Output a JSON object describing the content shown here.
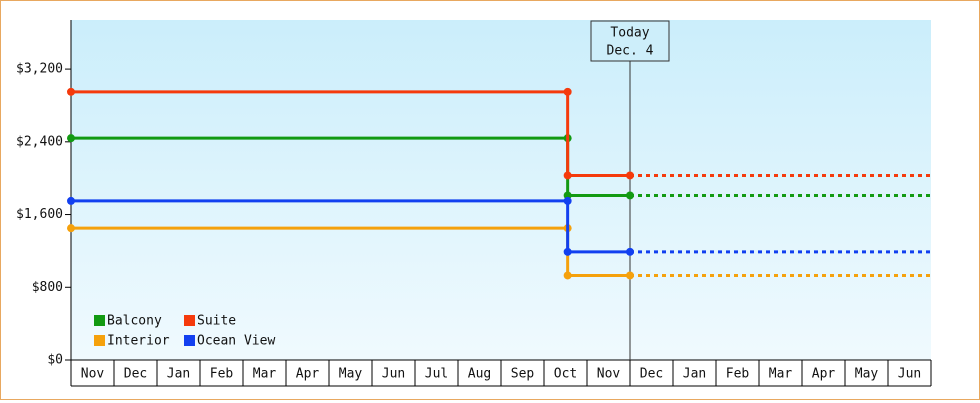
{
  "chart_data": {
    "type": "step-line",
    "categories": [
      "Nov",
      "Dec",
      "Jan",
      "Feb",
      "Mar",
      "Apr",
      "May",
      "Jun",
      "Jul",
      "Aug",
      "Sep",
      "Oct",
      "Nov",
      "Dec",
      "Jan",
      "Feb",
      "Mar",
      "Apr",
      "May",
      "Jun"
    ],
    "xlim": [
      0,
      20
    ],
    "ylim": [
      0,
      3740
    ],
    "yticks": [
      {
        "value": 0,
        "label": "$0"
      },
      {
        "value": 800,
        "label": "$800"
      },
      {
        "value": 1600,
        "label": "$1,600"
      },
      {
        "value": 2400,
        "label": "$2,400"
      },
      {
        "value": 3200,
        "label": "$3,200"
      }
    ],
    "today": {
      "x": 13,
      "label": [
        "Today",
        "Dec. 4"
      ]
    },
    "projection_x": [
      13,
      20
    ],
    "series": [
      {
        "name": "Balcony",
        "color": "#129a12",
        "x": [
          0,
          11.55,
          11.55,
          13
        ],
        "values": [
          2440,
          2440,
          1810,
          1810
        ],
        "projection_values": [
          1810,
          1810
        ]
      },
      {
        "name": "Suite",
        "color": "#f53a0c",
        "x": [
          0,
          11.55,
          11.55,
          13
        ],
        "values": [
          2950,
          2950,
          2030,
          2030
        ],
        "projection_values": [
          2030,
          2030
        ]
      },
      {
        "name": "Interior",
        "color": "#f5a10c",
        "x": [
          0,
          11.55,
          11.55,
          13
        ],
        "values": [
          1450,
          1450,
          930,
          930
        ],
        "projection_values": [
          930,
          930
        ]
      },
      {
        "name": "Ocean View",
        "color": "#1240f0",
        "x": [
          0,
          11.55,
          11.55,
          13
        ],
        "values": [
          1750,
          1750,
          1190,
          1190
        ],
        "projection_values": [
          1190,
          1190
        ]
      }
    ]
  }
}
